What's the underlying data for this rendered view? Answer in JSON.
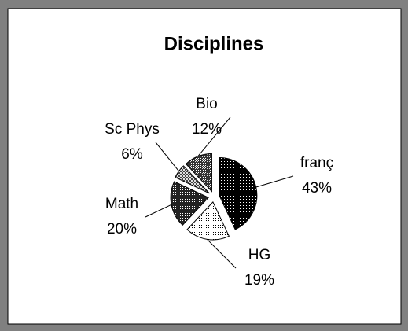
{
  "chart_data": {
    "type": "pie",
    "title": "Disciplines",
    "categories": [
      "franç",
      "HG",
      "Math",
      "Sc Phys",
      "Bio"
    ],
    "values": [
      43,
      19,
      20,
      6,
      12
    ],
    "value_labels": [
      "43%",
      "19%",
      "20%",
      "6%",
      "12%"
    ]
  }
}
